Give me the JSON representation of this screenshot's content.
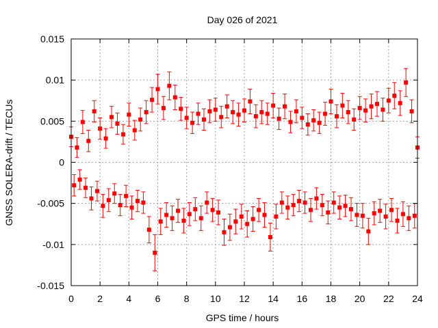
{
  "chart_data": {
    "type": "scatter",
    "title": "Day 026 of 2021",
    "xlabel": "GPS time / hours",
    "ylabel": "GNSS SOLERA-drift / TECUs",
    "xlim": [
      0,
      24
    ],
    "ylim": [
      -0.015,
      0.015
    ],
    "x_ticks": [
      0,
      2,
      4,
      6,
      8,
      10,
      12,
      14,
      16,
      18,
      20,
      22,
      24
    ],
    "x_tick_labels": [
      "0",
      "2",
      "4",
      "6",
      "8",
      "10",
      "12",
      "14",
      "16",
      "18",
      "20",
      "22",
      "24"
    ],
    "y_ticks": [
      -0.015,
      -0.01,
      -0.005,
      0,
      0.005,
      0.01,
      0.015
    ],
    "y_tick_labels": [
      "-0.015",
      "-0.01",
      "-0.005",
      "0",
      "0.005",
      "0.01",
      "0.015"
    ],
    "grid": true,
    "marker": "square",
    "error_bars": true,
    "series_color": "#ff0000",
    "series": [
      {
        "points": [
          [
            0.0,
            0.0031,
            0.0012
          ],
          [
            0.2,
            -0.0028,
            0.0013
          ],
          [
            0.4,
            0.0018,
            0.0012
          ],
          [
            0.6,
            -0.0021,
            0.0012
          ],
          [
            0.8,
            0.0049,
            0.0014
          ],
          [
            1.0,
            -0.0031,
            0.0012
          ],
          [
            1.2,
            0.0026,
            0.0013
          ],
          [
            1.4,
            -0.0044,
            0.0014
          ],
          [
            1.6,
            0.0062,
            0.0013
          ],
          [
            1.8,
            -0.0035,
            0.0012
          ],
          [
            2.0,
            0.0041,
            0.0013
          ],
          [
            2.2,
            -0.0053,
            0.0014
          ],
          [
            2.4,
            0.0029,
            0.0012
          ],
          [
            2.6,
            -0.0046,
            0.0014
          ],
          [
            2.8,
            0.0055,
            0.0013
          ],
          [
            3.0,
            -0.0038,
            0.0012
          ],
          [
            3.2,
            0.0047,
            0.0013
          ],
          [
            3.4,
            -0.0052,
            0.0013
          ],
          [
            3.6,
            0.0034,
            0.0012
          ],
          [
            3.8,
            -0.0041,
            0.0013
          ],
          [
            4.0,
            0.0058,
            0.0014
          ],
          [
            4.2,
            -0.0055,
            0.0014
          ],
          [
            4.4,
            0.0039,
            0.0012
          ],
          [
            4.6,
            -0.0047,
            0.0013
          ],
          [
            4.8,
            0.0052,
            0.0014
          ],
          [
            5.0,
            -0.0049,
            0.0013
          ],
          [
            5.2,
            0.0061,
            0.0014
          ],
          [
            5.4,
            -0.0082,
            0.0016
          ],
          [
            5.6,
            0.0076,
            0.0015
          ],
          [
            5.8,
            -0.011,
            0.0022
          ],
          [
            6.0,
            0.0089,
            0.0018
          ],
          [
            6.2,
            -0.0072,
            0.0016
          ],
          [
            6.4,
            0.0066,
            0.0014
          ],
          [
            6.6,
            -0.0064,
            0.0015
          ],
          [
            6.8,
            0.0093,
            0.0017
          ],
          [
            7.0,
            -0.0068,
            0.0015
          ],
          [
            7.2,
            0.0079,
            0.0015
          ],
          [
            7.4,
            -0.0059,
            0.0014
          ],
          [
            7.6,
            0.0065,
            0.0014
          ],
          [
            7.8,
            -0.0071,
            0.0015
          ],
          [
            8.0,
            0.0054,
            0.0013
          ],
          [
            8.2,
            -0.0063,
            0.0014
          ],
          [
            8.4,
            0.0048,
            0.0013
          ],
          [
            8.6,
            -0.0057,
            0.0014
          ],
          [
            8.8,
            0.0059,
            0.0013
          ],
          [
            9.0,
            -0.0068,
            0.0015
          ],
          [
            9.2,
            0.0052,
            0.0013
          ],
          [
            9.4,
            -0.0049,
            0.0013
          ],
          [
            9.6,
            0.0062,
            0.0014
          ],
          [
            9.8,
            -0.0058,
            0.0014
          ],
          [
            10.0,
            0.0064,
            0.0014
          ],
          [
            10.2,
            -0.0061,
            0.0015
          ],
          [
            10.4,
            0.0055,
            0.0013
          ],
          [
            10.6,
            -0.0085,
            0.0016
          ],
          [
            10.8,
            0.0068,
            0.0014
          ],
          [
            11.0,
            -0.0079,
            0.0016
          ],
          [
            11.2,
            0.0061,
            0.0014
          ],
          [
            11.4,
            -0.0072,
            0.0015
          ],
          [
            11.6,
            0.0058,
            0.0014
          ],
          [
            11.8,
            -0.0066,
            0.0015
          ],
          [
            12.0,
            0.0063,
            0.0014
          ],
          [
            12.2,
            -0.0075,
            0.0016
          ],
          [
            12.4,
            0.0074,
            0.0015
          ],
          [
            12.6,
            -0.0069,
            0.0015
          ],
          [
            12.8,
            0.0056,
            0.0014
          ],
          [
            13.0,
            -0.0058,
            0.0014
          ],
          [
            13.2,
            0.0061,
            0.0014
          ],
          [
            13.4,
            -0.0064,
            0.0015
          ],
          [
            13.6,
            0.0059,
            0.0013
          ],
          [
            13.8,
            -0.0091,
            0.0017
          ],
          [
            14.0,
            0.0069,
            0.0015
          ],
          [
            14.2,
            -0.0066,
            0.0015
          ],
          [
            14.4,
            0.0053,
            0.0013
          ],
          [
            14.6,
            -0.0049,
            0.0013
          ],
          [
            14.8,
            0.0068,
            0.0015
          ],
          [
            15.0,
            -0.0055,
            0.0014
          ],
          [
            15.2,
            0.0049,
            0.0013
          ],
          [
            15.4,
            -0.0052,
            0.0013
          ],
          [
            15.6,
            0.0062,
            0.0014
          ],
          [
            15.8,
            -0.0047,
            0.0013
          ],
          [
            16.0,
            0.0054,
            0.0013
          ],
          [
            16.2,
            -0.0049,
            0.0013
          ],
          [
            16.4,
            0.0046,
            0.0013
          ],
          [
            16.6,
            -0.0058,
            0.0014
          ],
          [
            16.8,
            0.0051,
            0.0013
          ],
          [
            17.0,
            -0.0044,
            0.0013
          ],
          [
            17.2,
            0.0048,
            0.0013
          ],
          [
            17.4,
            -0.0052,
            0.0013
          ],
          [
            17.6,
            0.0059,
            0.0014
          ],
          [
            17.8,
            -0.0061,
            0.0014
          ],
          [
            18.0,
            0.0074,
            0.0015
          ],
          [
            18.2,
            -0.0049,
            0.0013
          ],
          [
            18.4,
            0.0056,
            0.0014
          ],
          [
            18.6,
            -0.0055,
            0.0014
          ],
          [
            18.8,
            0.0069,
            0.0015
          ],
          [
            19.0,
            -0.0053,
            0.0013
          ],
          [
            19.2,
            0.0061,
            0.0014
          ],
          [
            19.4,
            -0.0057,
            0.0014
          ],
          [
            19.6,
            0.0052,
            0.0013
          ],
          [
            19.8,
            -0.0064,
            0.0014
          ],
          [
            20.0,
            0.0066,
            0.0014
          ],
          [
            20.2,
            -0.0065,
            0.0015
          ],
          [
            20.4,
            0.0063,
            0.0014
          ],
          [
            20.6,
            -0.0084,
            0.0016
          ],
          [
            20.8,
            0.0068,
            0.0015
          ],
          [
            21.0,
            -0.0062,
            0.0014
          ],
          [
            21.2,
            0.0071,
            0.0015
          ],
          [
            21.4,
            -0.0059,
            0.0014
          ],
          [
            21.6,
            0.0064,
            0.0014
          ],
          [
            21.8,
            -0.0066,
            0.0015
          ],
          [
            22.0,
            0.0075,
            0.0015
          ],
          [
            22.2,
            -0.0058,
            0.0014
          ],
          [
            22.4,
            0.0081,
            0.0016
          ],
          [
            22.6,
            -0.0071,
            0.0015
          ],
          [
            22.8,
            0.0072,
            0.0015
          ],
          [
            23.0,
            -0.0063,
            0.0015
          ],
          [
            23.2,
            0.0097,
            0.0017
          ],
          [
            23.4,
            -0.0068,
            0.0015
          ],
          [
            23.6,
            0.0062,
            0.0014
          ],
          [
            23.8,
            -0.0065,
            0.0015
          ],
          [
            24.0,
            0.0018,
            0.0013
          ]
        ]
      }
    ]
  }
}
